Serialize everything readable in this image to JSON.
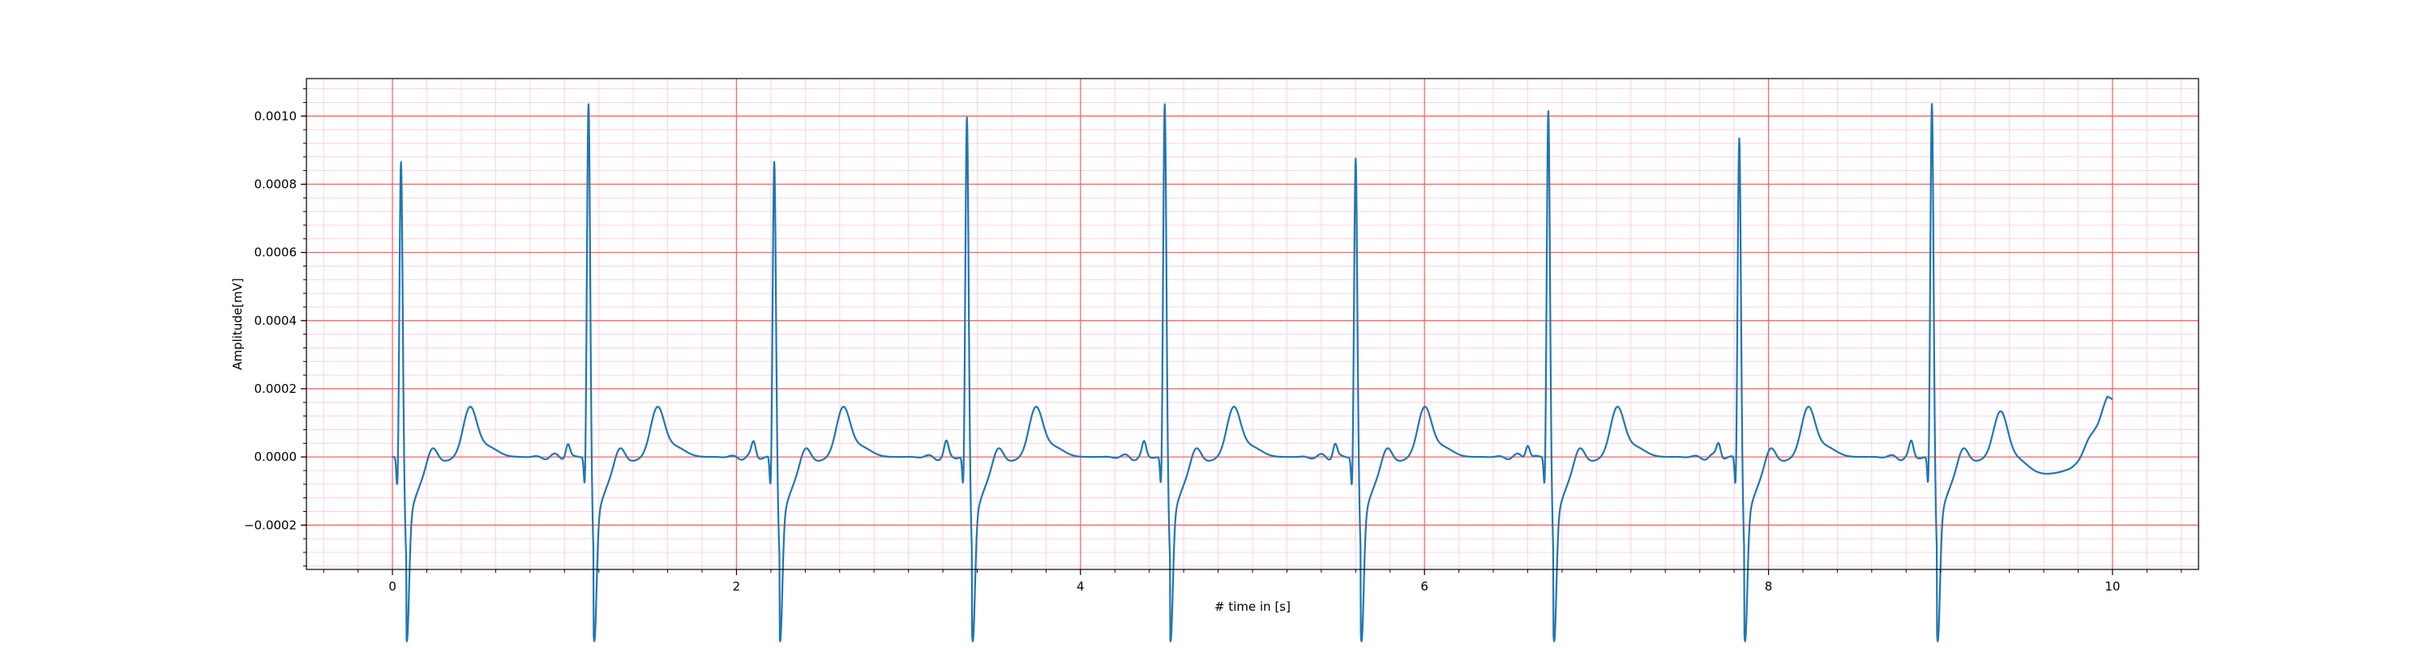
{
  "chart_data": {
    "type": "line",
    "title": "",
    "xlabel": "# time in [s]",
    "ylabel": "Amplitude[mV]",
    "xlim": [
      -0.5,
      10.5
    ],
    "ylim": [
      -0.00033,
      0.00111
    ],
    "xticks": [
      0,
      2,
      4,
      6,
      8,
      10
    ],
    "xtick_labels": [
      "0",
      "2",
      "4",
      "6",
      "8",
      "10"
    ],
    "yticks": [
      -0.0002,
      0.0,
      0.0002,
      0.0004,
      0.0006,
      0.0008,
      0.001
    ],
    "ytick_labels": [
      "−0.0002",
      "0.0000",
      "0.0002",
      "0.0004",
      "0.0006",
      "0.0008",
      "0.0010"
    ],
    "grid": true,
    "minor_grid": true,
    "colors": {
      "line": "#1f77b4",
      "major_grid": "#ff6666",
      "minor_grid": "#ffd0dc",
      "frame": "#000000"
    },
    "series": [
      {
        "beat_times": [
          0.05,
          1.14,
          2.22,
          3.34,
          4.49,
          5.6,
          6.72,
          7.83,
          8.95
        ],
        "beat_peaks": [
          0.00087,
          0.00104,
          0.00087,
          0.001,
          0.00104,
          0.00088,
          0.00102,
          0.00094,
          0.00104
        ],
        "x": [
          0.0,
          10.0
        ],
        "baseline": 0.0,
        "tail_end_value": 0.00017
      }
    ]
  }
}
